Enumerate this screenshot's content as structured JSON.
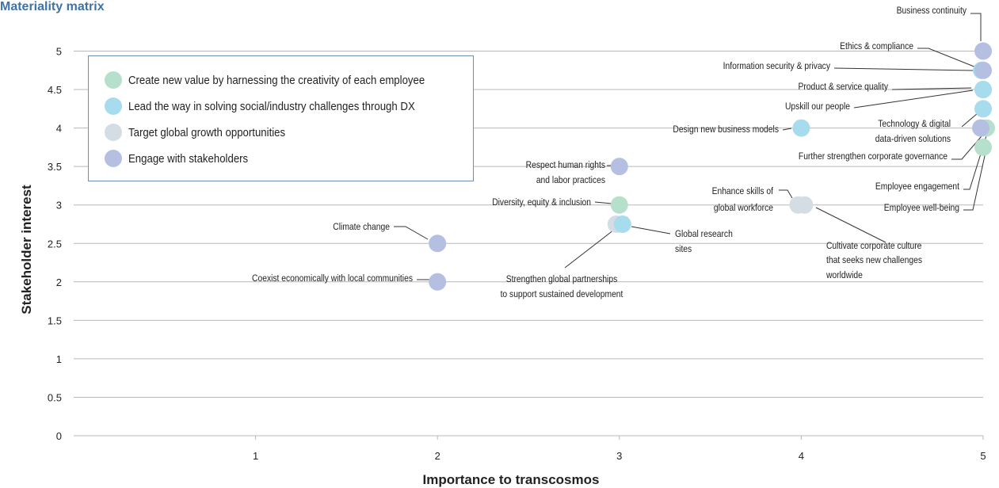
{
  "page_title": "Materiality matrix",
  "colors": {
    "create_value": "#b6e0cc",
    "dx": "#a6dcee",
    "global_growth": "#d4dde3",
    "stakeholders": "#b4bfe2",
    "grid": "#b8b8b8",
    "legend_border": "#6f8fb0",
    "title": "#3f73a8"
  },
  "chart_data": {
    "type": "scatter",
    "title": "Materiality matrix",
    "xlabel": "Importance to transcosmos",
    "ylabel": "Stakeholder interest",
    "xlim": [
      0,
      5
    ],
    "ylim": [
      0,
      5
    ],
    "x_ticks": [
      "1",
      "2",
      "3",
      "4",
      "5"
    ],
    "y_ticks": [
      "0",
      "0.5",
      "1",
      "1.5",
      "2",
      "2.5",
      "3",
      "3.5",
      "4",
      "4.5",
      "5"
    ],
    "grid": "horizontal",
    "legend_position": "top-left",
    "series": [
      {
        "name": "Create new value by harnessing the creativity of each employee",
        "key": "create_value"
      },
      {
        "name": "Lead the way in solving social/industry challenges through DX",
        "key": "dx"
      },
      {
        "name": "Target global growth opportunities",
        "key": "global_growth"
      },
      {
        "name": "Engage with stakeholders",
        "key": "stakeholders"
      }
    ],
    "points": [
      {
        "label": "Business continuity",
        "x": 5,
        "y": 5,
        "series": "stakeholders"
      },
      {
        "label": "Ethics & compliance",
        "x": 5,
        "y": 4.75,
        "series": "stakeholders"
      },
      {
        "label": "Information security & privacy",
        "x": 5,
        "y": 4.75,
        "series": "dx"
      },
      {
        "label": "Product & service quality",
        "x": 5,
        "y": 4.5,
        "series": "create_value"
      },
      {
        "label": "Upskill our people",
        "x": 5,
        "y": 4.5,
        "series": "dx"
      },
      {
        "label": "Technology & digital data-driven solutions",
        "x": 5,
        "y": 4.25,
        "series": "dx"
      },
      {
        "label": "Design new business models",
        "x": 4,
        "y": 4,
        "series": "dx"
      },
      {
        "label": "Further strengthen corporate governance",
        "x": 5,
        "y": 4,
        "series": "stakeholders"
      },
      {
        "label": "Employee engagement",
        "x": 5,
        "y": 4,
        "series": "create_value"
      },
      {
        "label": "Employee well-being",
        "x": 5,
        "y": 3.75,
        "series": "create_value"
      },
      {
        "label": "Respect human rights and labor practices",
        "x": 3,
        "y": 3.5,
        "series": "stakeholders"
      },
      {
        "label": "Diversity, equity & inclusion",
        "x": 3,
        "y": 3,
        "series": "create_value"
      },
      {
        "label": "Enhance skills of global workforce",
        "x": 4,
        "y": 3,
        "series": "global_growth"
      },
      {
        "label": "Cultivate corporate culture that seeks new challenges worldwide",
        "x": 4,
        "y": 3,
        "series": "global_growth"
      },
      {
        "label": "Global research sites",
        "x": 3,
        "y": 2.75,
        "series": "dx"
      },
      {
        "label": "Strengthen global partnerships to support sustained development",
        "x": 3,
        "y": 2.75,
        "series": "global_growth"
      },
      {
        "label": "Climate change",
        "x": 2,
        "y": 2.5,
        "series": "stakeholders"
      },
      {
        "label": "Coexist economically with local communities",
        "x": 2,
        "y": 2,
        "series": "stakeholders"
      }
    ]
  }
}
